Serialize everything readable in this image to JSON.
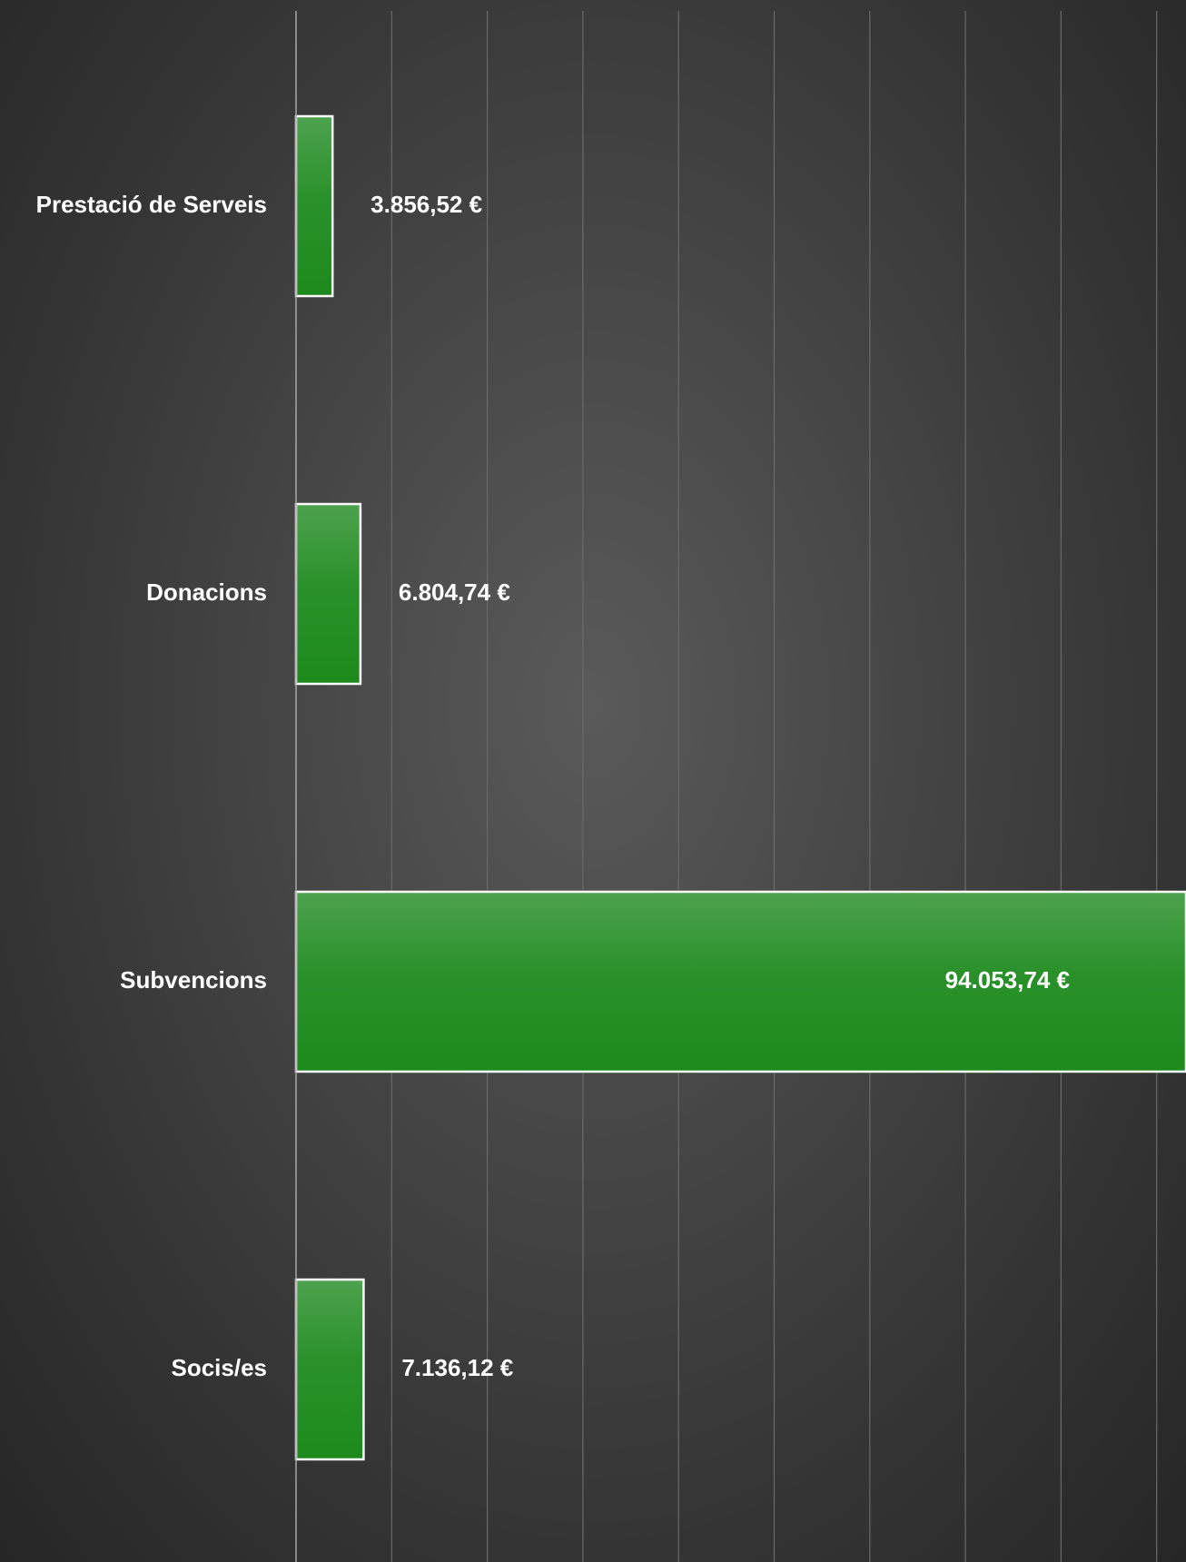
{
  "chart_data": {
    "type": "bar",
    "orientation": "horizontal",
    "title": "",
    "xlabel": "",
    "ylabel": "",
    "categories": [
      "Prestació de Serveis",
      "Donacions",
      "Subvencions",
      "Socis/es"
    ],
    "values": [
      3856.52,
      6804.74,
      94053.74,
      7136.12
    ],
    "value_labels": [
      "3.856,52 €",
      "6.804,74 €",
      "94.053,74 €",
      "7.136,12 €"
    ],
    "xlim": [
      0,
      94053.74
    ],
    "grid": true,
    "legend": "none",
    "colors": {
      "bar_top": "#4ea24e",
      "bar_bottom": "#1d8a1d",
      "bar_border": "#ffffff",
      "label": "#ffffff",
      "gridline": "#6a6a6a",
      "axis": "#a8a8a8"
    }
  }
}
